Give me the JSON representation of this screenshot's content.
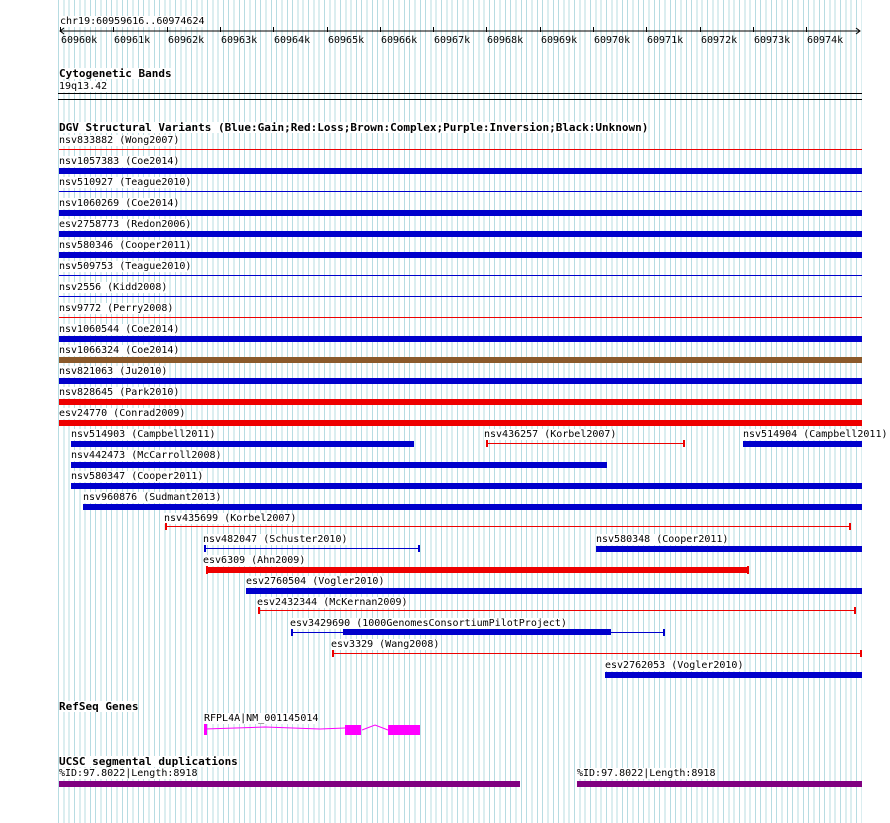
{
  "ruler": {
    "position": "chr19:60959616..60974624",
    "ticks": [
      "60960k",
      "60961k",
      "60962k",
      "60963k",
      "60964k",
      "60965k",
      "60966k",
      "60967k",
      "60968k",
      "60969k",
      "60970k",
      "60971k",
      "60972k",
      "60973k",
      "60974k"
    ]
  },
  "cytoband": {
    "title": "Cytogenetic Bands",
    "band": "19q13.42"
  },
  "dgv": {
    "title": "DGV Structural Variants (Blue:Gain;Red:Loss;Brown:Complex;Purple:Inversion;Black:Unknown)",
    "colors": {
      "gain": "#0000cc",
      "loss": "#ee0000",
      "complex": "#8b5a2b",
      "inversion": "#800080",
      "unknown": "#000000"
    },
    "features": [
      {
        "label": "nsv833882 (Wong2007)",
        "type": "loss",
        "style": "thin"
      },
      {
        "label": "nsv1057383 (Coe2014)",
        "type": "gain",
        "style": "thick"
      },
      {
        "label": "nsv510927 (Teague2010)",
        "type": "gain",
        "style": "thin"
      },
      {
        "label": "nsv1060269 (Coe2014)",
        "type": "gain",
        "style": "thick"
      },
      {
        "label": "esv2758773 (Redon2006)",
        "type": "gain",
        "style": "thick"
      },
      {
        "label": "nsv580346 (Cooper2011)",
        "type": "gain",
        "style": "thick"
      },
      {
        "label": "nsv509753 (Teague2010)",
        "type": "gain",
        "style": "thin"
      },
      {
        "label": "nsv2556 (Kidd2008)",
        "type": "gain",
        "style": "thin"
      },
      {
        "label": "nsv9772 (Perry2008)",
        "type": "loss",
        "style": "thin"
      },
      {
        "label": "nsv1060544 (Coe2014)",
        "type": "gain",
        "style": "thick"
      },
      {
        "label": "nsv1066324 (Coe2014)",
        "type": "complex",
        "style": "thick"
      },
      {
        "label": "nsv821063 (Ju2010)",
        "type": "gain",
        "style": "thick"
      },
      {
        "label": "nsv828645 (Park2010)",
        "type": "loss",
        "style": "thick"
      },
      {
        "label": "esv24770 (Conrad2009)",
        "type": "loss",
        "style": "thick"
      },
      {
        "label": "nsv514903 (Campbell2011)",
        "type": "gain",
        "style": "thick"
      },
      {
        "label": "nsv436257 (Korbel2007)",
        "type": "loss",
        "style": "thin-capped"
      },
      {
        "label": "nsv514904 (Campbell2011)",
        "type": "gain",
        "style": "thick"
      },
      {
        "label": "nsv442473 (McCarroll2008)",
        "type": "gain",
        "style": "thick"
      },
      {
        "label": "nsv580347 (Cooper2011)",
        "type": "gain",
        "style": "thick"
      },
      {
        "label": "nsv960876 (Sudmant2013)",
        "type": "gain",
        "style": "thick"
      },
      {
        "label": "nsv435699 (Korbel2007)",
        "type": "loss",
        "style": "thin-capped"
      },
      {
        "label": "nsv482047 (Schuster2010)",
        "type": "gain",
        "style": "thin-capped"
      },
      {
        "label": "nsv580348 (Cooper2011)",
        "type": "gain",
        "style": "thick"
      },
      {
        "label": "esv6309 (Ahn2009)",
        "type": "loss",
        "style": "thick-capped"
      },
      {
        "label": "esv2760504 (Vogler2010)",
        "type": "gain",
        "style": "thick"
      },
      {
        "label": "esv2432344 (McKernan2009)",
        "type": "loss",
        "style": "thin-capped"
      },
      {
        "label": "esv3429690 (1000GenomesConsortiumPilotProject)",
        "type": "gain",
        "style": "mixed"
      },
      {
        "label": "esv3329 (Wang2008)",
        "type": "loss",
        "style": "thin-capped"
      },
      {
        "label": "esv2762053 (Vogler2010)",
        "type": "gain",
        "style": "thick"
      }
    ]
  },
  "refseq": {
    "title": "RefSeq Genes",
    "gene_label": "RFPL4A|NM_001145014",
    "color": "#ff00ff"
  },
  "segdup": {
    "title": "UCSC segmental duplications",
    "left_label": "%ID:97.8022|Length:8918",
    "right_label": "%ID:97.8022|Length:8918",
    "color": "#800080"
  }
}
